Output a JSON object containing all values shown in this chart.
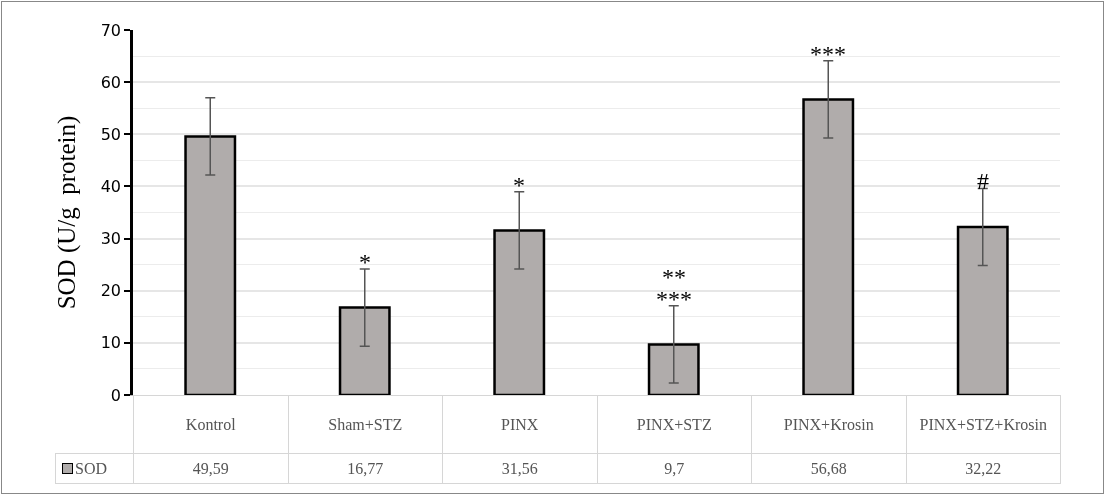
{
  "chart_data": {
    "type": "bar",
    "ylabel": "SOD (U/g  protein)",
    "categories": [
      "Kontrol",
      "Sham+STZ",
      "PINX",
      "PINX+STZ",
      "PINX+Krosin",
      "PINX+STZ+Krosin"
    ],
    "series": [
      {
        "name": "SOD",
        "color": "#b0acab",
        "values": [
          49.59,
          16.77,
          31.56,
          9.7,
          56.68,
          32.22
        ],
        "value_labels": [
          "49,59",
          "16,77",
          "31,56",
          "9,7",
          "56,68",
          "32,22"
        ],
        "errors": [
          7.4,
          7.4,
          7.4,
          7.4,
          7.4,
          7.4
        ]
      }
    ],
    "ylim": [
      0,
      70
    ],
    "yticks": [
      0,
      10,
      20,
      30,
      40,
      50,
      60,
      70
    ],
    "grid": "y",
    "legend": "bottom left",
    "tick_labels": "y",
    "annotations": [
      "*",
      "*",
      "***",
      "**",
      "***",
      "#"
    ]
  }
}
